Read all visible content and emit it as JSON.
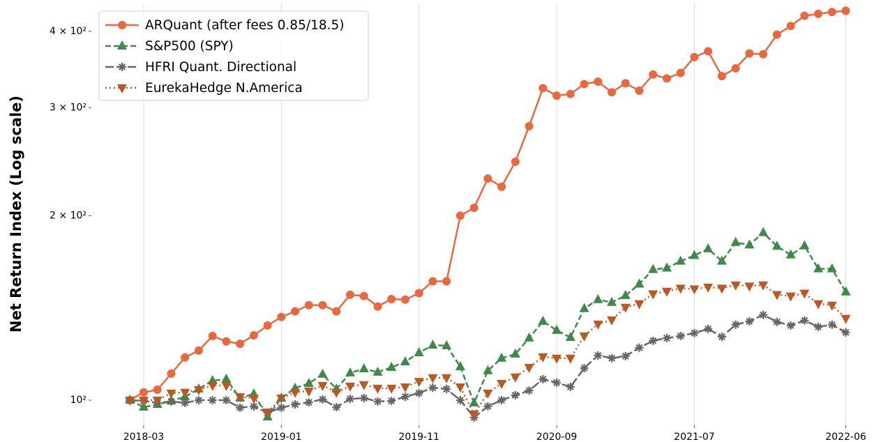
{
  "chart_data": {
    "type": "line",
    "ylabel": "Net Return Index (Log scale)",
    "x": [
      "2018-02",
      "2018-03",
      "2018-04",
      "2018-05",
      "2018-06",
      "2018-07",
      "2018-08",
      "2018-09",
      "2018-10",
      "2018-11",
      "2018-12",
      "2019-01",
      "2019-02",
      "2019-03",
      "2019-04",
      "2019-05",
      "2019-06",
      "2019-07",
      "2019-08",
      "2019-09",
      "2019-10",
      "2019-11",
      "2019-12",
      "2020-01",
      "2020-02",
      "2020-03",
      "2020-04",
      "2020-05",
      "2020-06",
      "2020-07",
      "2020-08",
      "2020-09",
      "2020-10",
      "2020-11",
      "2020-12",
      "2021-01",
      "2021-02",
      "2021-03",
      "2021-04",
      "2021-05",
      "2021-06",
      "2021-07",
      "2021-08",
      "2021-09",
      "2021-10",
      "2021-11",
      "2021-12",
      "2022-01",
      "2022-02",
      "2022-03",
      "2022-04",
      "2022-05",
      "2022-06"
    ],
    "xlim": [
      "2017-11",
      "2022-08"
    ],
    "xticks": [
      "2018-03",
      "2019-01",
      "2019-11",
      "2020-09",
      "2021-07",
      "2022-06"
    ],
    "ylim": [
      91,
      444
    ],
    "log_y": true,
    "grid": "x",
    "legend": "upper left",
    "yticks": [
      {
        "value": 100,
        "label": "10²"
      },
      {
        "value": 200,
        "label": "2 × 10²"
      },
      {
        "value": 300,
        "label": "3 × 10²"
      },
      {
        "value": 400,
        "label": "4 × 10²"
      }
    ],
    "series": [
      {
        "name": "ARQuant (after fees 0.85/18.5)",
        "color": "#e8683f",
        "linestyle": "solid",
        "marker": "circle",
        "values": [
          100,
          103,
          104,
          110.5,
          117.4,
          120.5,
          127.3,
          124.7,
          123.6,
          127.6,
          132.4,
          136.7,
          139.6,
          142.9,
          142.9,
          139.6,
          148.6,
          147.9,
          142.2,
          146.2,
          145.9,
          149.5,
          156.3,
          156.3,
          200,
          206,
          230,
          223,
          245,
          280,
          323,
          314,
          316,
          328,
          331,
          318,
          329,
          320,
          340,
          335,
          342,
          363,
          371,
          338,
          348,
          368,
          367,
          395,
          408,
          424,
          427,
          430,
          432
        ]
      },
      {
        "name": "S&P500 (SPY)",
        "color": "#3f8a4a",
        "linestyle": "dashed",
        "marker": "triangle-up",
        "values": [
          100,
          97.4,
          98.4,
          99.7,
          101.3,
          104.3,
          107.6,
          108.2,
          100.8,
          102.4,
          93.9,
          100.8,
          104.6,
          106.5,
          110.2,
          104.3,
          110.8,
          112.5,
          111.1,
          113.1,
          115.5,
          119.5,
          123,
          122.7,
          113.4,
          99,
          111.7,
          117.1,
          118.9,
          126.3,
          134.5,
          130,
          126.6,
          141.1,
          145.9,
          144.4,
          148.2,
          154.7,
          163.4,
          164.3,
          168.6,
          172.2,
          176.6,
          168.6,
          180.9,
          179.2,
          187.7,
          178.3,
          172.6,
          178.6,
          163.8,
          163.8,
          150.2
        ]
      },
      {
        "name": "HFRI Quant. Directional",
        "color": "#666666",
        "linestyle": "longdash",
        "marker": "star",
        "values": [
          100,
          99.7,
          99,
          99.5,
          99,
          100,
          100,
          100,
          97.2,
          97.7,
          95.4,
          97.2,
          98.4,
          99.2,
          100.3,
          97.4,
          100.5,
          100.8,
          99.5,
          99.7,
          101.3,
          102.7,
          104.8,
          104.3,
          100,
          93.7,
          97.7,
          100,
          101.9,
          103.7,
          108.2,
          106.8,
          105.1,
          112.8,
          118.3,
          117.1,
          118,
          121.8,
          125,
          126.3,
          127.3,
          128.7,
          130.7,
          126.9,
          132.8,
          134.5,
          137.8,
          134.2,
          132.4,
          134.9,
          131.7,
          132.8,
          129
        ]
      },
      {
        "name": "EurekaHedge N.America",
        "color": "#b85a25",
        "linestyle": "dotted",
        "marker": "triangle-down",
        "values": [
          100,
          100,
          100,
          102.7,
          103,
          104,
          105.7,
          105.7,
          101.3,
          100.8,
          95.6,
          100.8,
          103,
          103.5,
          105.7,
          103,
          105.4,
          106,
          104.6,
          104.6,
          105.1,
          107.3,
          108.8,
          108.8,
          105.1,
          94.9,
          102.7,
          106.5,
          109.1,
          113.1,
          117.7,
          117.1,
          117.1,
          127.3,
          133.1,
          135.2,
          141.8,
          143.7,
          149.1,
          150.6,
          152.3,
          151.9,
          152.9,
          152.3,
          154.2,
          153.5,
          154.2,
          148.7,
          147.9,
          149.5,
          143.7,
          142.9,
          136
        ]
      }
    ]
  }
}
